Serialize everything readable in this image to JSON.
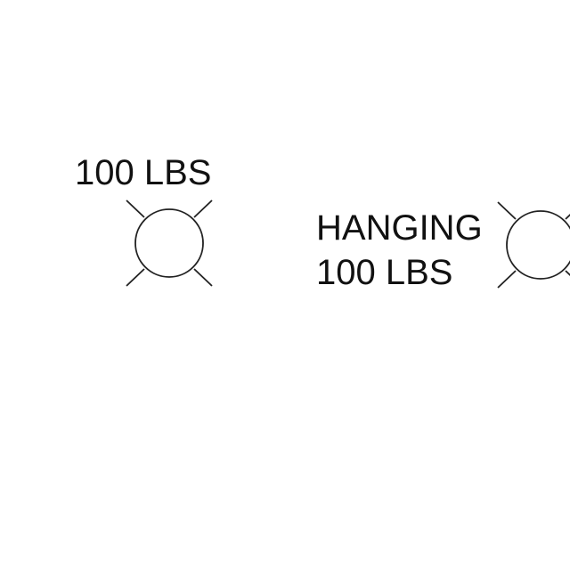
{
  "fixtures": [
    {
      "symbol": "circle-x-fixture-icon",
      "label_lines": [
        "100 LBS"
      ]
    },
    {
      "symbol": "circle-x-fixture-icon",
      "label_lines": [
        "HANGING",
        "100 LBS"
      ]
    }
  ],
  "colors": {
    "background": "#ffffff",
    "line": "#222222",
    "text": "#111111"
  }
}
